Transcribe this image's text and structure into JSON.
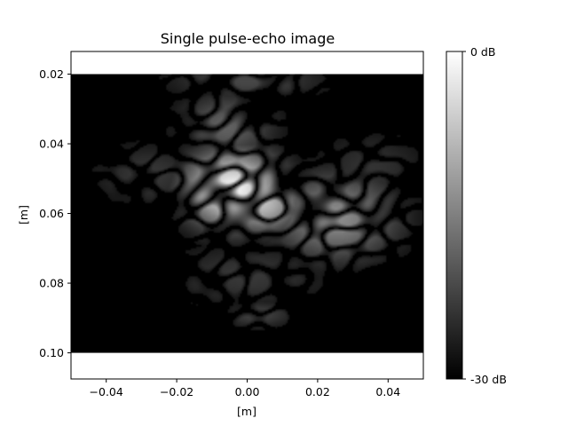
{
  "chart_data": {
    "type": "heatmap",
    "title": "Single pulse-echo image",
    "xlabel": "[m]",
    "ylabel": "[m]",
    "xlim": [
      -0.05,
      0.05
    ],
    "ylim": [
      0.1075,
      0.0135
    ],
    "image_extent": {
      "x": [
        -0.05,
        0.05
      ],
      "y": [
        0.02,
        0.1
      ]
    },
    "xticks": [
      -0.04,
      -0.02,
      0.0,
      0.02,
      0.04
    ],
    "xtick_labels": [
      "−0.04",
      "−0.02",
      "0.00",
      "0.02",
      "0.04"
    ],
    "yticks": [
      0.02,
      0.04,
      0.06,
      0.08,
      0.1
    ],
    "ytick_labels": [
      "0.02",
      "0.04",
      "0.06",
      "0.08",
      "0.10"
    ],
    "colormap": "gray",
    "color_range_db": [
      -30,
      0
    ],
    "colorbar_labels": [
      "0 dB",
      "-30 dB"
    ],
    "colorbar_ticks_db": [
      0,
      -30
    ],
    "grid": false,
    "speckle_regions": [
      {
        "x": -0.004,
        "y": 0.053,
        "sx": 0.01,
        "sy": 0.008,
        "level": 0.95
      },
      {
        "x": 0.004,
        "y": 0.057,
        "sx": 0.008,
        "sy": 0.006,
        "level": 0.75
      },
      {
        "x": 0.025,
        "y": 0.061,
        "sx": 0.013,
        "sy": 0.009,
        "level": 0.55
      },
      {
        "x": -0.006,
        "y": 0.035,
        "sx": 0.01,
        "sy": 0.007,
        "level": 0.38
      },
      {
        "x": 0.0,
        "y": 0.022,
        "sx": 0.016,
        "sy": 0.004,
        "level": 0.28
      },
      {
        "x": -0.028,
        "y": 0.049,
        "sx": 0.012,
        "sy": 0.007,
        "level": 0.22
      },
      {
        "x": 0.035,
        "y": 0.047,
        "sx": 0.012,
        "sy": 0.008,
        "level": 0.2
      },
      {
        "x": 0.0,
        "y": 0.078,
        "sx": 0.018,
        "sy": 0.007,
        "level": 0.22
      },
      {
        "x": 0.003,
        "y": 0.089,
        "sx": 0.008,
        "sy": 0.003,
        "level": 0.26
      }
    ]
  }
}
